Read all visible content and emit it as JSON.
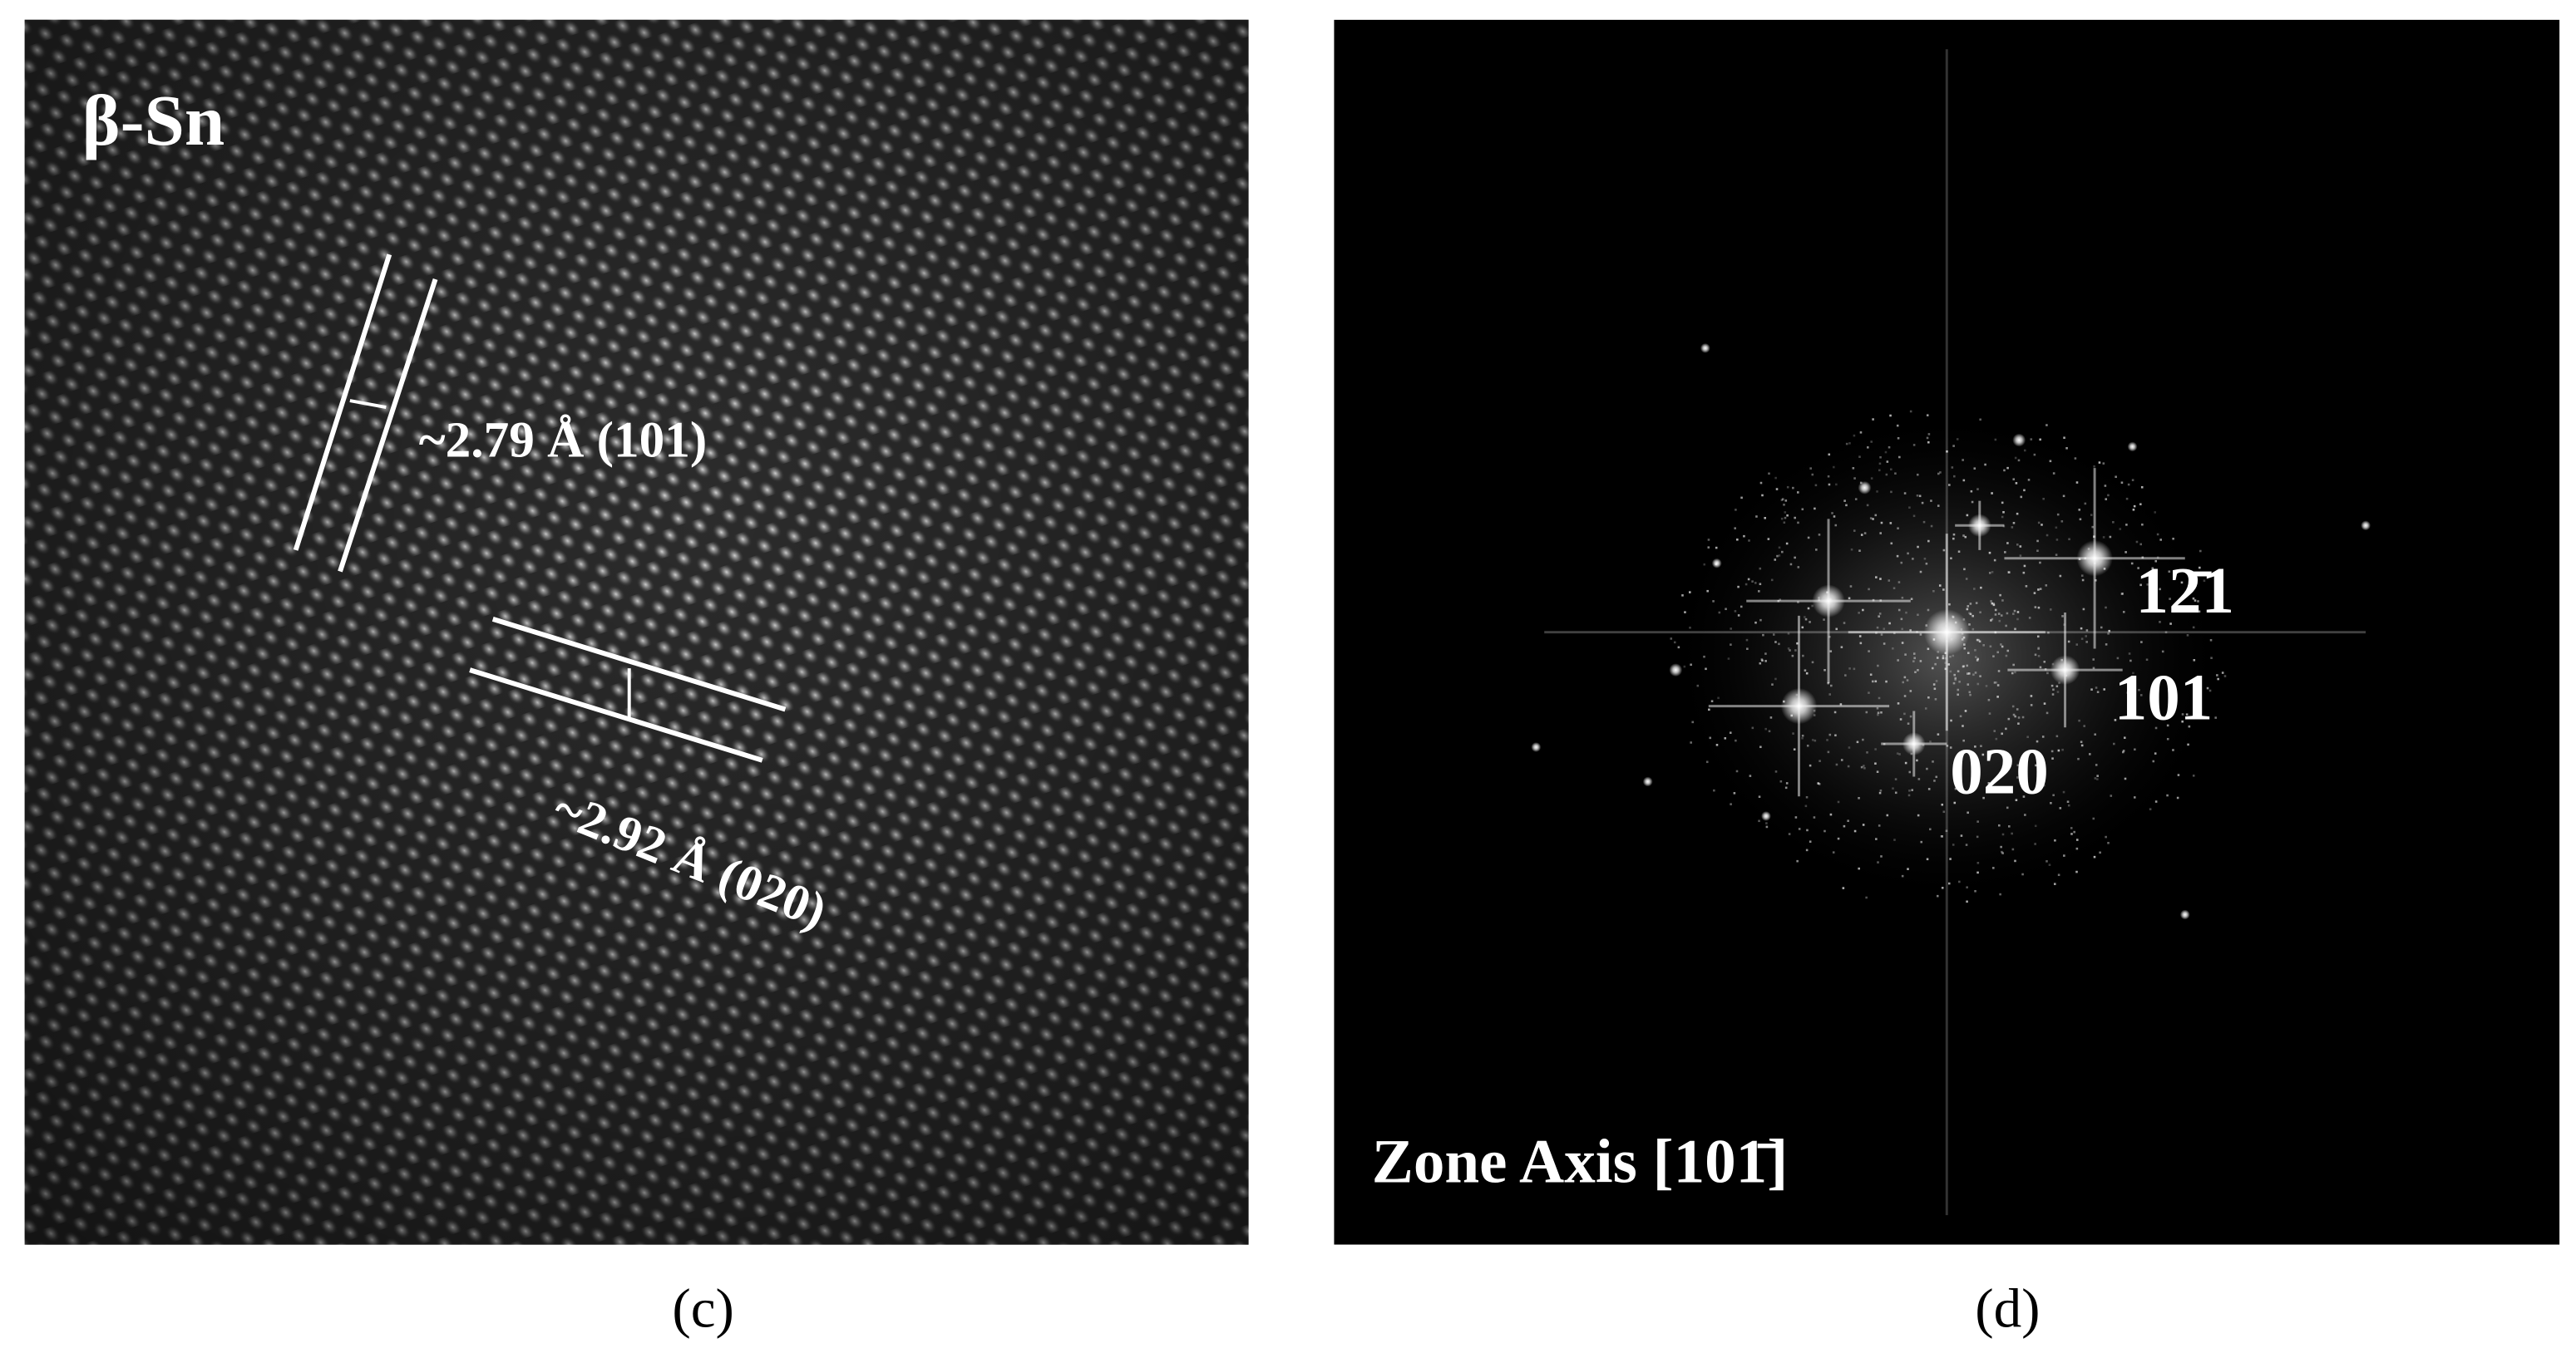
{
  "panels": [
    {
      "label": "(c)",
      "title": "β-Sn",
      "annotations": [
        "~2.79 Å (101)",
        "~2.92 Å (020)"
      ]
    },
    {
      "label": "(d)",
      "spot_labels": [
        "12̄1",
        "101",
        "020"
      ],
      "zone_axis": "Zone Axis [101̄]"
    }
  ]
}
